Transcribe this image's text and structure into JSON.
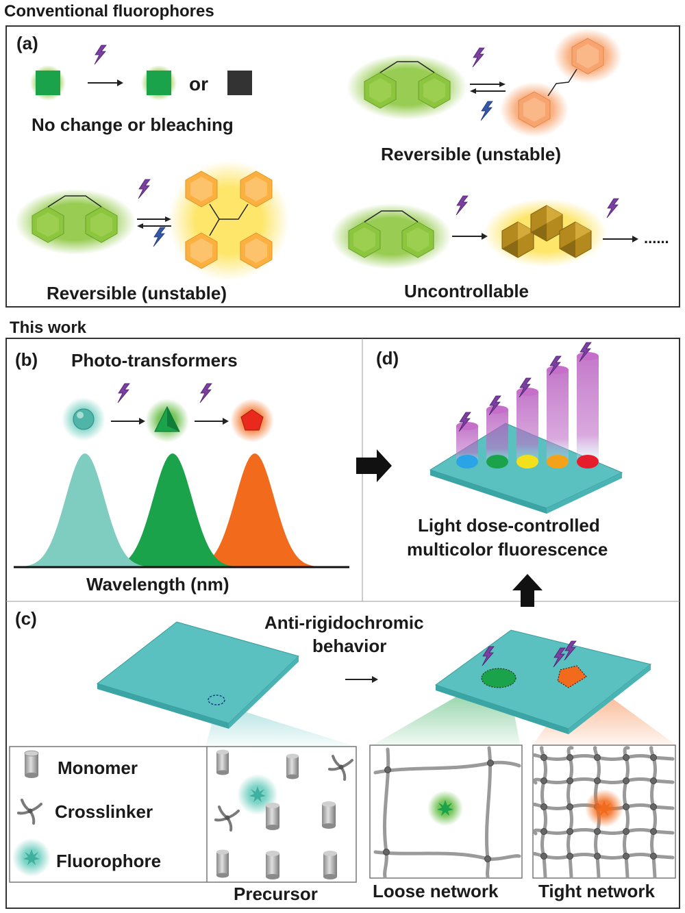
{
  "sections": {
    "top_title": "Conventional fluorophores",
    "bottom_title": "This work"
  },
  "panel_a": {
    "label": "(a)",
    "or_text": "or",
    "no_change_caption": "No change or bleaching",
    "reversible_caption_1": "Reversible (unstable)",
    "reversible_caption_2": "Reversible (unstable)",
    "uncontrollable_caption": "Uncontrollable",
    "ellipsis": "......"
  },
  "panel_b": {
    "label": "(b)",
    "title": "Photo-transformers",
    "xaxis_label": "Wavelength (nm)",
    "peak_colors": [
      "#7fcdc0",
      "#1aa34a",
      "#f26a1b"
    ]
  },
  "panel_c": {
    "label": "(c)",
    "title_line1": "Anti-rigidochromic",
    "title_line2": "behavior",
    "legend": {
      "monomer": "Monomer",
      "crosslinker": "Crosslinker",
      "fluorophore": "Fluorophore"
    },
    "precursor_caption": "Precursor",
    "loose_caption": "Loose network",
    "tight_caption": "Tight network"
  },
  "panel_d": {
    "label": "(d)",
    "caption_line1": "Light dose-controlled",
    "caption_line2": "multicolor fluorescence",
    "spot_colors": [
      "#2aa4e6",
      "#1aa34a",
      "#f2e01c",
      "#f5a21b",
      "#e61e2b"
    ]
  },
  "colors": {
    "green_glow": "#8cc63f",
    "orange_glow": "#f7a46e",
    "yellow_glow": "#fde35a",
    "lightning": "#6a2c91",
    "lightning_blue": "#2c4a9a",
    "slab": "#5bc0c0"
  }
}
